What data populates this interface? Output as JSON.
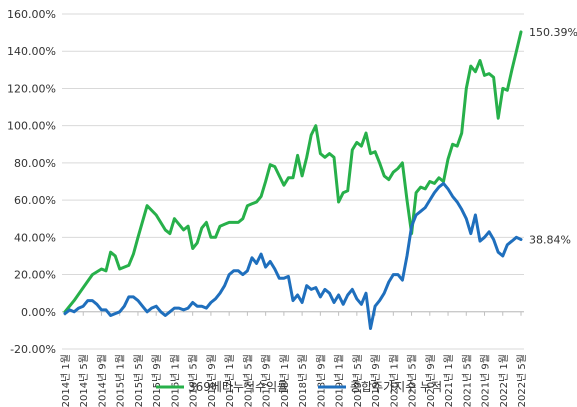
{
  "chart_data": {
    "type": "line",
    "title": "",
    "xlabel": "",
    "ylabel": "",
    "ylim": [
      -20,
      160
    ],
    "y_ticks": [
      "-20.00%",
      "0.00%",
      "20.00%",
      "40.00%",
      "60.00%",
      "80.00%",
      "100.00%",
      "120.00%",
      "140.00%",
      "160.00%"
    ],
    "x_tick_labels": [
      "2014년 1월",
      "2014년 5월",
      "2014년 9월",
      "2015년 1월",
      "2015년 5월",
      "2015년 9월",
      "2016년 1월",
      "2016년 5월",
      "2016년 9월",
      "2017년 1월",
      "2017년 5월",
      "2017년 9월",
      "2018년 1월",
      "2018년 5월",
      "2018년 9월",
      "2019년 1월",
      "2019년 5월",
      "2019년 9월",
      "2020년 1월",
      "2020년 5월",
      "2020년 9월",
      "2021년 1월",
      "2021년 5월",
      "2021년 9월",
      "2022년 1월",
      "2022년 5월"
    ],
    "x_range_months": [
      "2014-01",
      "2022-05"
    ],
    "grid": "horizontal",
    "legend_position": "bottom",
    "series": [
      {
        "name": "369베타누적수익률",
        "color": "#27b04a",
        "end_label": "150.39%",
        "x": [
          0,
          2,
          4,
          6,
          8,
          9,
          10,
          11,
          12,
          13,
          14,
          15,
          16,
          18,
          20,
          22,
          23,
          24,
          25,
          26,
          27,
          28,
          29,
          30,
          31,
          32,
          33,
          34,
          35,
          36,
          37,
          38,
          39,
          40,
          41,
          42,
          43,
          44,
          45,
          46,
          47,
          48,
          49,
          50,
          51,
          52,
          53,
          54,
          55,
          56,
          57,
          58,
          59,
          60,
          61,
          62,
          63,
          64,
          65,
          66,
          67,
          68,
          69,
          70,
          71,
          72,
          73,
          74,
          75,
          76,
          77,
          78,
          79,
          80,
          81,
          82,
          83,
          84,
          85,
          86,
          87,
          88,
          89,
          90,
          91,
          92,
          93,
          94,
          95,
          96,
          97,
          98,
          99,
          100
        ],
        "values": [
          0,
          6,
          13,
          20,
          23,
          22,
          32,
          30,
          23,
          24,
          25,
          31,
          40,
          57,
          52,
          44,
          42,
          50,
          47,
          44,
          46,
          34,
          37,
          45,
          48,
          40,
          40,
          46,
          47,
          48,
          48,
          48,
          50,
          57,
          58,
          59,
          62,
          70,
          79,
          78,
          73,
          68,
          72,
          72,
          84,
          73,
          83,
          95,
          100,
          85,
          83,
          85,
          83,
          59,
          64,
          65,
          87,
          91,
          89,
          96,
          85,
          86,
          80,
          73,
          71,
          75,
          77,
          80,
          60,
          42,
          64,
          67,
          66,
          70,
          69,
          72,
          70,
          82,
          90,
          89,
          96,
          120,
          132,
          129,
          135,
          127,
          128,
          126,
          104,
          120,
          119,
          130,
          140,
          150.39
        ]
      },
      {
        "name": "종합주가지수 누적",
        "color": "#1f6fbd",
        "end_label": "38.84%",
        "x": [
          0,
          1,
          2,
          3,
          4,
          5,
          6,
          7,
          8,
          9,
          10,
          11,
          12,
          13,
          14,
          15,
          16,
          17,
          18,
          19,
          20,
          21,
          22,
          23,
          24,
          25,
          26,
          27,
          28,
          29,
          30,
          31,
          32,
          33,
          34,
          35,
          36,
          37,
          38,
          39,
          40,
          41,
          42,
          43,
          44,
          45,
          46,
          47,
          48,
          49,
          50,
          51,
          52,
          53,
          54,
          55,
          56,
          57,
          58,
          59,
          60,
          61,
          62,
          63,
          64,
          65,
          66,
          67,
          68,
          69,
          70,
          71,
          72,
          73,
          74,
          75,
          76,
          77,
          78,
          79,
          80,
          81,
          82,
          83,
          84,
          85,
          86,
          87,
          88,
          89,
          90,
          91,
          92,
          93,
          94,
          95,
          96,
          97,
          98,
          99,
          100
        ],
        "values": [
          -1,
          1,
          0,
          2,
          3,
          6,
          6,
          4,
          1,
          1,
          -2,
          -1,
          0,
          3,
          8,
          8,
          6,
          3,
          0,
          2,
          3,
          0,
          -2,
          0,
          2,
          2,
          1,
          2,
          5,
          3,
          3,
          2,
          5,
          7,
          10,
          14,
          20,
          22,
          22,
          20,
          22,
          29,
          26,
          31,
          24,
          27,
          23,
          18,
          18,
          19,
          6,
          9,
          5,
          14,
          12,
          13,
          8,
          12,
          10,
          5,
          9,
          4,
          9,
          12,
          7,
          4,
          10,
          -9,
          3,
          6,
          10,
          16,
          20,
          20,
          17,
          30,
          46,
          52,
          54,
          56,
          60,
          64,
          67,
          69,
          66,
          62,
          59,
          55,
          50,
          42,
          52,
          38,
          40,
          43,
          38.84,
          32,
          30,
          36,
          38,
          40,
          38.84
        ]
      }
    ]
  }
}
